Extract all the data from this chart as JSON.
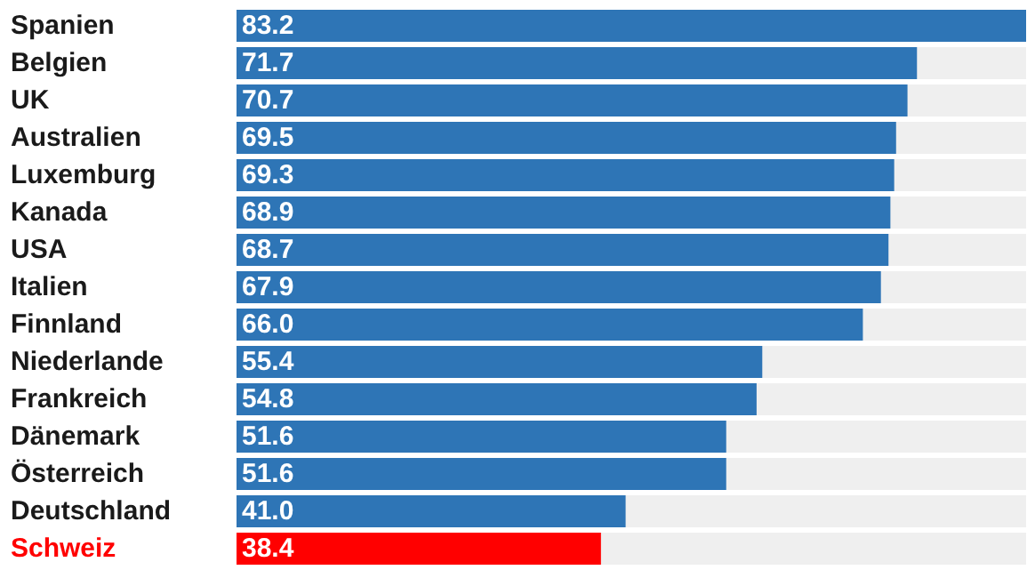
{
  "chart_data": {
    "type": "bar",
    "orientation": "horizontal",
    "categories": [
      "Spanien",
      "Belgien",
      "UK",
      "Australien",
      "Luxemburg",
      "Kanada",
      "USA",
      "Italien",
      "Finnland",
      "Niederlande",
      "Frankreich",
      "Dänemark",
      "Österreich",
      "Deutschland",
      "Schweiz"
    ],
    "values": [
      83.2,
      71.7,
      70.7,
      69.5,
      69.3,
      68.9,
      68.7,
      67.9,
      66.0,
      55.4,
      54.8,
      51.6,
      51.6,
      41.0,
      38.4
    ],
    "value_labels": [
      "83.2",
      "71.7",
      "70.7",
      "69.5",
      "69.3",
      "68.9",
      "68.7",
      "67.9",
      "66.0",
      "55.4",
      "54.8",
      "51.6",
      "51.6",
      "41.0",
      "38.4"
    ],
    "colors": [
      "#2e75b6",
      "#2e75b6",
      "#2e75b6",
      "#2e75b6",
      "#2e75b6",
      "#2e75b6",
      "#2e75b6",
      "#2e75b6",
      "#2e75b6",
      "#2e75b6",
      "#2e75b6",
      "#2e75b6",
      "#2e75b6",
      "#2e75b6",
      "#ff0000"
    ]
  }
}
